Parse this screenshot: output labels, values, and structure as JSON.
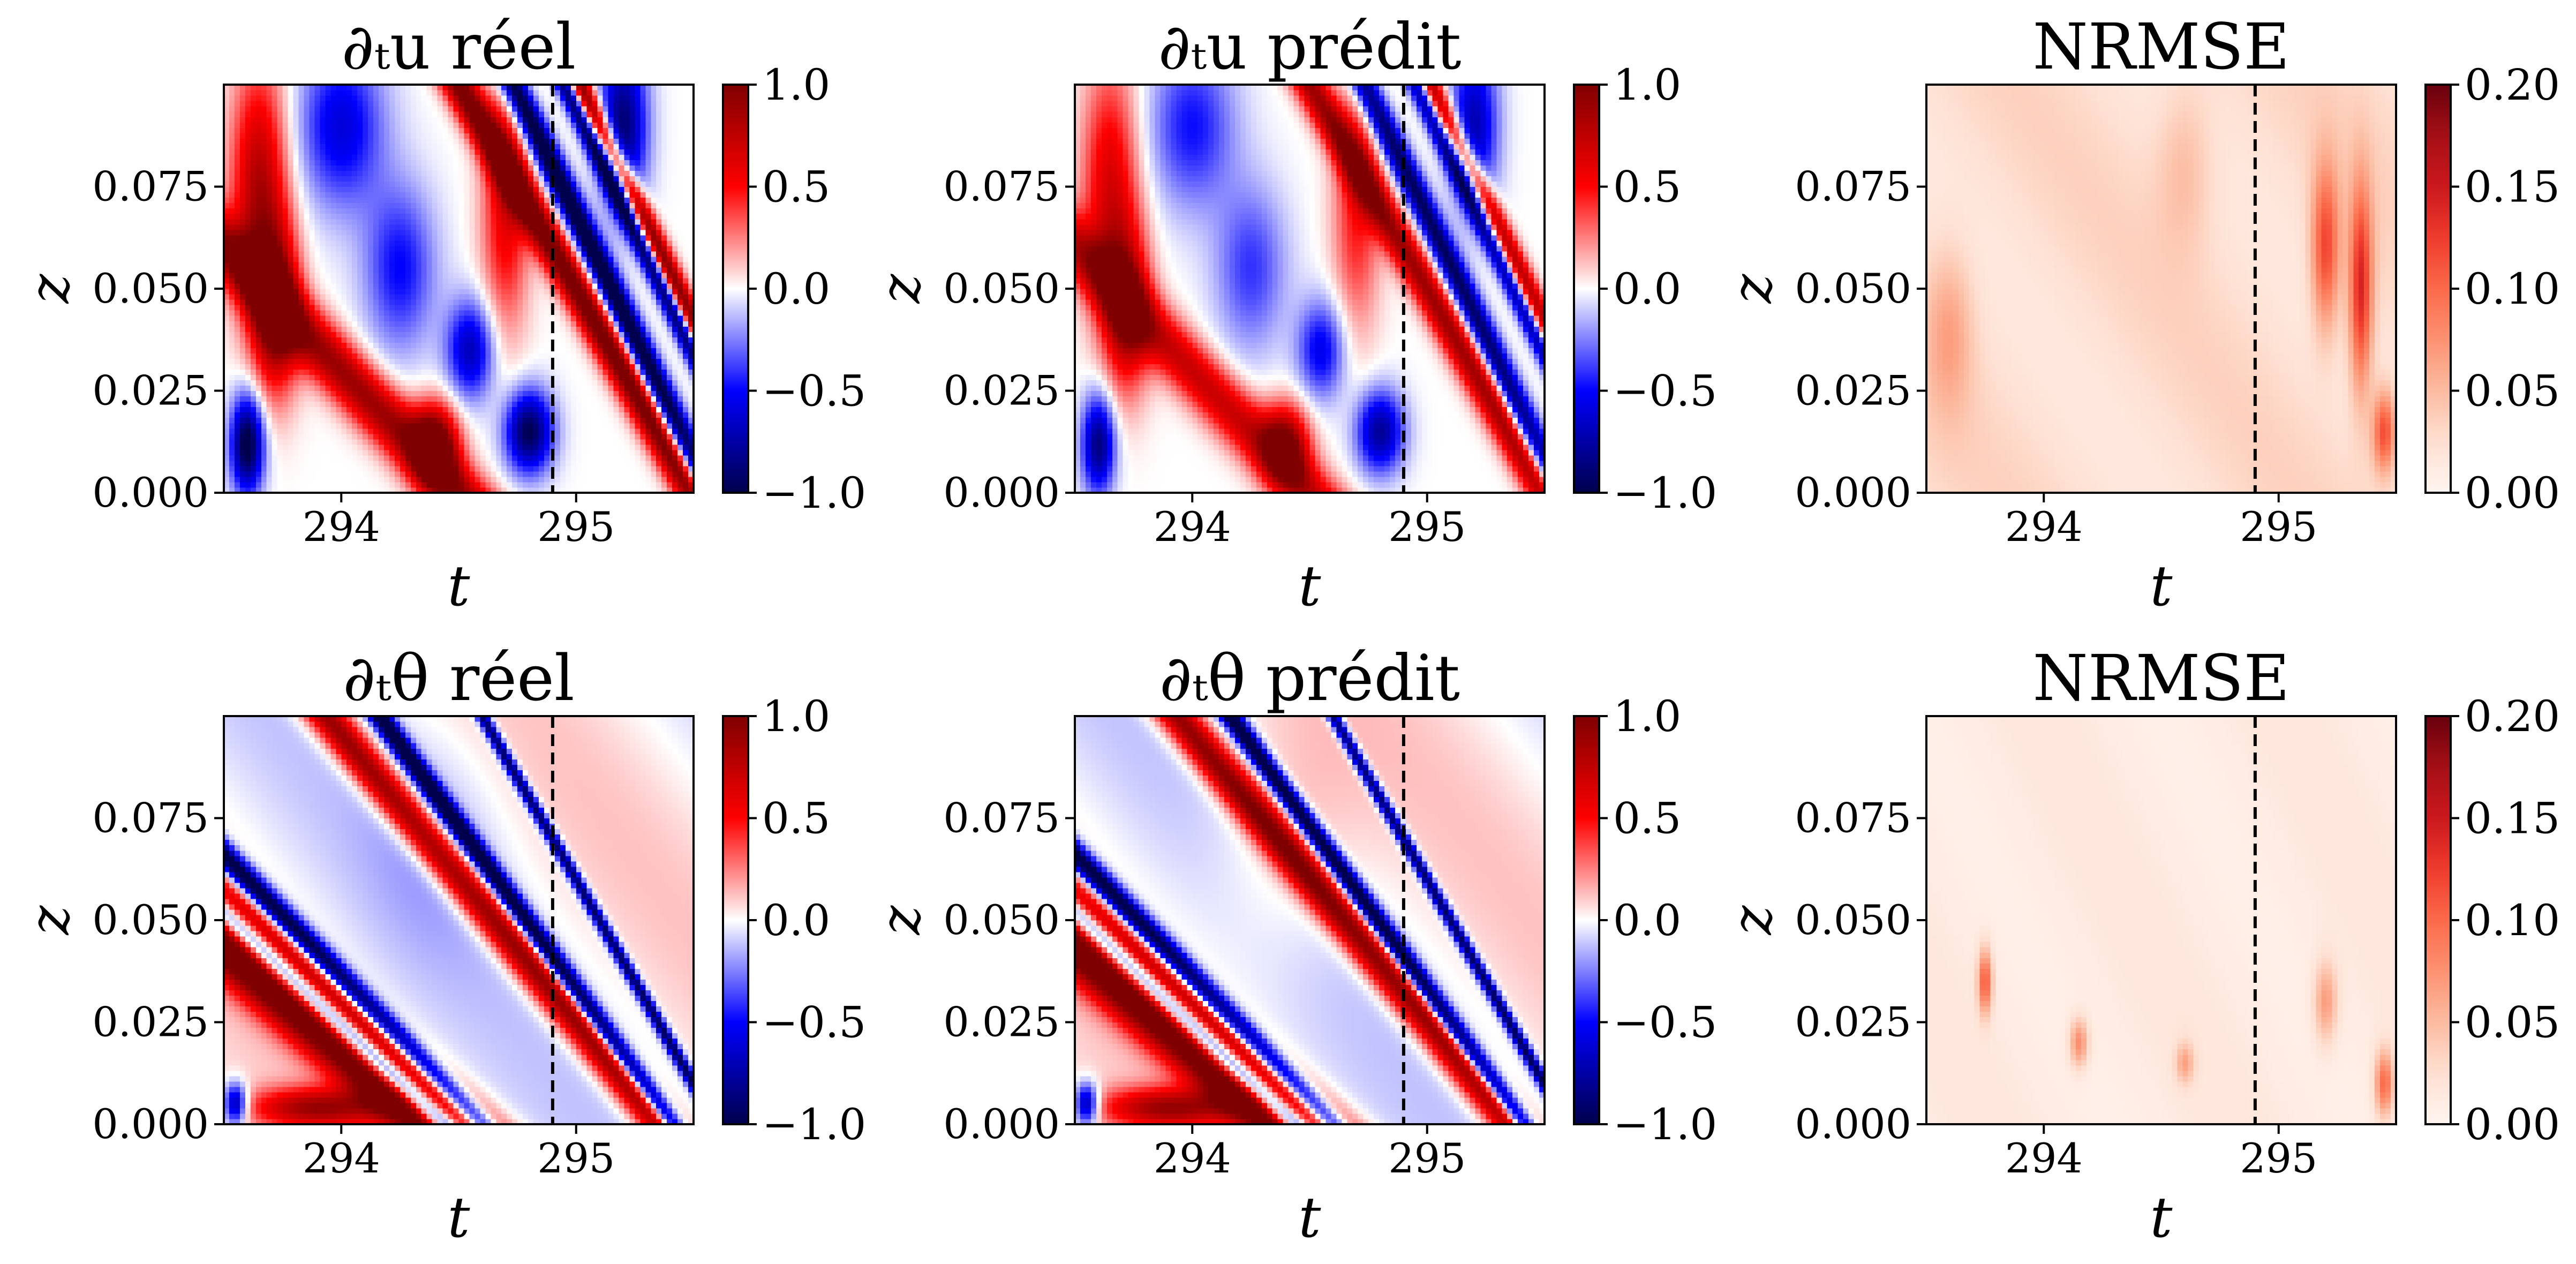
{
  "figure": {
    "colors": {
      "diverging_low": "#00004d",
      "diverging_mid": "#ffffff",
      "diverging_high": "#67000d",
      "sequential_high": "#67000d",
      "frame": "#000000",
      "boundary_line": "#000000"
    }
  },
  "chart_data": [
    {
      "type": "heatmap",
      "title": "∂ₜu réel",
      "xlabel": "t",
      "ylabel": "z",
      "xlim": [
        293.5,
        295.5
      ],
      "ylim": [
        0.0,
        0.1
      ],
      "xticks": [
        "294",
        "295"
      ],
      "xtick_values": [
        294,
        295
      ],
      "yticks": [
        "0.000",
        "0.025",
        "0.050",
        "0.075"
      ],
      "ytick_values": [
        0.0,
        0.025,
        0.05,
        0.075
      ],
      "boundary_t": 294.9,
      "colormap": "seismic",
      "colorbar": {
        "range": [
          -1.0,
          1.0
        ],
        "ticks": [
          "1.0",
          "0.5",
          "0.0",
          "−0.5",
          "−1.0"
        ],
        "tick_values": [
          1.0,
          0.5,
          0.0,
          -0.5,
          -1.0
        ]
      }
    },
    {
      "type": "heatmap",
      "title": "∂ₜu prédit",
      "xlabel": "t",
      "ylabel": "z",
      "xlim": [
        293.5,
        295.5
      ],
      "ylim": [
        0.0,
        0.1
      ],
      "xticks": [
        "294",
        "295"
      ],
      "xtick_values": [
        294,
        295
      ],
      "yticks": [
        "0.000",
        "0.025",
        "0.050",
        "0.075"
      ],
      "ytick_values": [
        0.0,
        0.025,
        0.05,
        0.075
      ],
      "boundary_t": 294.9,
      "colormap": "seismic",
      "colorbar": {
        "range": [
          -1.0,
          1.0
        ],
        "ticks": [
          "1.0",
          "0.5",
          "0.0",
          "−0.5",
          "−1.0"
        ],
        "tick_values": [
          1.0,
          0.5,
          0.0,
          -0.5,
          -1.0
        ]
      }
    },
    {
      "type": "heatmap",
      "title": "NRMSE",
      "xlabel": "t",
      "ylabel": "z",
      "xlim": [
        293.5,
        295.5
      ],
      "ylim": [
        0.0,
        0.1
      ],
      "xticks": [
        "294",
        "295"
      ],
      "xtick_values": [
        294,
        295
      ],
      "yticks": [
        "0.000",
        "0.025",
        "0.050",
        "0.075"
      ],
      "ytick_values": [
        0.0,
        0.025,
        0.05,
        0.075
      ],
      "boundary_t": 294.9,
      "colormap": "reds",
      "colorbar": {
        "range": [
          0.0,
          0.2
        ],
        "ticks": [
          "0.20",
          "0.15",
          "0.10",
          "0.05",
          "0.00"
        ],
        "tick_values": [
          0.2,
          0.15,
          0.1,
          0.05,
          0.0
        ]
      }
    },
    {
      "type": "heatmap",
      "title": "∂ₜθ réel",
      "xlabel": "t",
      "ylabel": "z",
      "xlim": [
        293.5,
        295.5
      ],
      "ylim": [
        0.0,
        0.1
      ],
      "xticks": [
        "294",
        "295"
      ],
      "xtick_values": [
        294,
        295
      ],
      "yticks": [
        "0.000",
        "0.025",
        "0.050",
        "0.075"
      ],
      "ytick_values": [
        0.0,
        0.025,
        0.05,
        0.075
      ],
      "boundary_t": 294.9,
      "colormap": "seismic",
      "colorbar": {
        "range": [
          -1.0,
          1.0
        ],
        "ticks": [
          "1.0",
          "0.5",
          "0.0",
          "−0.5",
          "−1.0"
        ],
        "tick_values": [
          1.0,
          0.5,
          0.0,
          -0.5,
          -1.0
        ]
      }
    },
    {
      "type": "heatmap",
      "title": "∂ₜθ prédit",
      "xlabel": "t",
      "ylabel": "z",
      "xlim": [
        293.5,
        295.5
      ],
      "ylim": [
        0.0,
        0.1
      ],
      "xticks": [
        "294",
        "295"
      ],
      "xtick_values": [
        294,
        295
      ],
      "yticks": [
        "0.000",
        "0.025",
        "0.050",
        "0.075"
      ],
      "ytick_values": [
        0.0,
        0.025,
        0.05,
        0.075
      ],
      "boundary_t": 294.9,
      "colormap": "seismic",
      "colorbar": {
        "range": [
          -1.0,
          1.0
        ],
        "ticks": [
          "1.0",
          "0.5",
          "0.0",
          "−0.5",
          "−1.0"
        ],
        "tick_values": [
          1.0,
          0.5,
          0.0,
          -0.5,
          -1.0
        ]
      }
    },
    {
      "type": "heatmap",
      "title": "NRMSE",
      "xlabel": "t",
      "ylabel": "z",
      "xlim": [
        293.5,
        295.5
      ],
      "ylim": [
        0.0,
        0.1
      ],
      "xticks": [
        "294",
        "295"
      ],
      "xtick_values": [
        294,
        295
      ],
      "yticks": [
        "0.000",
        "0.025",
        "0.050",
        "0.075"
      ],
      "ytick_values": [
        0.0,
        0.025,
        0.05,
        0.075
      ],
      "boundary_t": 294.9,
      "colormap": "reds",
      "colorbar": {
        "range": [
          0.0,
          0.2
        ],
        "ticks": [
          "0.20",
          "0.15",
          "0.10",
          "0.05",
          "0.00"
        ],
        "tick_values": [
          0.2,
          0.15,
          0.1,
          0.05,
          0.0
        ]
      }
    }
  ]
}
